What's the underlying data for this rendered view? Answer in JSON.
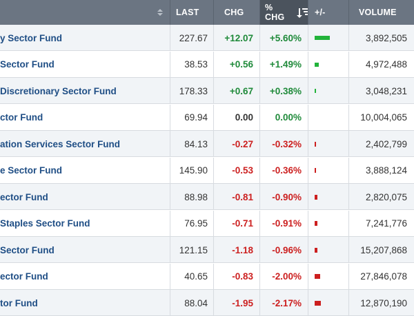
{
  "header": {
    "last": "LAST",
    "chg": "CHG",
    "pct_chg": "% CHG",
    "plus_minus": "+/-",
    "volume": "VOLUME"
  },
  "colors": {
    "positive": "#1f8a3a",
    "negative": "#cc1f1f",
    "name": "#1f4e85",
    "header_bg": "#6b7582",
    "header_active_bg": "#4b535d"
  },
  "rows": [
    {
      "name": "y Sector Fund",
      "last": "227.67",
      "chg": "+12.07",
      "pct": "+5.60%",
      "volume": "3,892,505",
      "dir": "up",
      "bar_fraction": 1.0
    },
    {
      "name": " Sector Fund",
      "last": "38.53",
      "chg": "+0.56",
      "pct": "+1.49%",
      "volume": "4,972,488",
      "dir": "up",
      "bar_fraction": 0.27
    },
    {
      "name": "Discretionary Sector Fund",
      "last": "178.33",
      "chg": "+0.67",
      "pct": "+0.38%",
      "volume": "3,048,231",
      "dir": "up",
      "bar_fraction": 0.07
    },
    {
      "name": "ctor Fund",
      "last": "69.94",
      "chg": "0.00",
      "pct": "0.00%",
      "volume": "10,004,065",
      "dir": "flat",
      "bar_fraction": 0.0
    },
    {
      "name": "ation Services Sector Fund",
      "last": "84.13",
      "chg": "-0.27",
      "pct": "-0.32%",
      "volume": "2,402,799",
      "dir": "down",
      "bar_fraction": 0.06
    },
    {
      "name": "e Sector Fund",
      "last": "145.90",
      "chg": "-0.53",
      "pct": "-0.36%",
      "volume": "3,888,124",
      "dir": "down",
      "bar_fraction": 0.07
    },
    {
      "name": "ector Fund",
      "last": "88.98",
      "chg": "-0.81",
      "pct": "-0.90%",
      "volume": "2,820,075",
      "dir": "down",
      "bar_fraction": 0.16
    },
    {
      "name": "Staples Sector Fund",
      "last": "76.95",
      "chg": "-0.71",
      "pct": "-0.91%",
      "volume": "7,241,776",
      "dir": "down",
      "bar_fraction": 0.16
    },
    {
      "name": "Sector Fund",
      "last": "121.15",
      "chg": "-1.18",
      "pct": "-0.96%",
      "volume": "15,207,868",
      "dir": "down",
      "bar_fraction": 0.17
    },
    {
      "name": "ector Fund",
      "last": "40.65",
      "chg": "-0.83",
      "pct": "-2.00%",
      "volume": "27,846,078",
      "dir": "down",
      "bar_fraction": 0.36
    },
    {
      "name": "tor Fund",
      "last": "88.04",
      "chg": "-1.95",
      "pct": "-2.17%",
      "volume": "12,870,190",
      "dir": "down",
      "bar_fraction": 0.39
    }
  ]
}
